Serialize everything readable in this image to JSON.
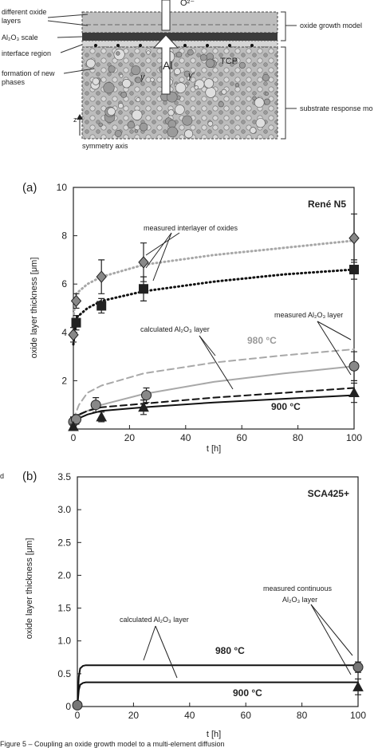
{
  "schematic": {
    "o_label": "O²⁻",
    "al_label": "Al",
    "tcp_label": "TCP",
    "gamma_label": "γ",
    "gamma_prime_label": "γ′",
    "left_labels": {
      "oxide_layers": "different oxide layers",
      "scale": "Al₂O₃ scale",
      "interface": "interface region",
      "new_phases": "formation of new phases",
      "symmetry_axis": "symmetry axis",
      "z": "z"
    },
    "right_labels": {
      "oxide_model": "oxide growth model",
      "substrate_model": "substrate response mo"
    }
  },
  "figure_caption": "Figure 5 – Coupling an oxide growth model to a multi-element diffusion",
  "side_fragment": "d",
  "chart_data": [
    {
      "type": "line",
      "panel_label": "(a)",
      "title": "René N5",
      "xlabel": "t [h]",
      "ylabel": "oxide layer thickness [μm]",
      "xlim": [
        0,
        100
      ],
      "ylim": [
        0,
        10
      ],
      "xticks": [
        "0",
        "20",
        "40",
        "60",
        "80",
        "100"
      ],
      "yticks": [
        "10",
        "8",
        "6",
        "4",
        "2"
      ],
      "annotations": {
        "interlayer": "measured interlayer of oxides",
        "calc": "calculated Al₂O₃ layer",
        "meas_al2o3": "measured Al₂O₃ layer",
        "t980": "980 °C",
        "t900": "900 °C"
      },
      "series": [
        {
          "kind": "curve",
          "color": "#a8a8a8",
          "dash": "1,4",
          "x": [
            0,
            1,
            5,
            10,
            25,
            50,
            75,
            100
          ],
          "y": [
            4.6,
            5.6,
            6.0,
            6.3,
            6.8,
            7.2,
            7.5,
            7.8
          ]
        },
        {
          "kind": "curve",
          "color": "#111111",
          "dash": "1,4",
          "x": [
            0,
            1,
            5,
            10,
            25,
            50,
            75,
            100
          ],
          "y": [
            3.5,
            4.6,
            5.0,
            5.3,
            5.7,
            6.1,
            6.4,
            6.6
          ]
        },
        {
          "kind": "curve",
          "color": "#a8a8a8",
          "dash": "8,5",
          "x": [
            0,
            2,
            5,
            10,
            25,
            50,
            75,
            100
          ],
          "y": [
            0.4,
            1.0,
            1.5,
            1.8,
            2.3,
            2.75,
            3.05,
            3.3
          ]
        },
        {
          "kind": "curve",
          "color": "#a8a8a8",
          "dash": "",
          "x": [
            0,
            2,
            5,
            10,
            25,
            50,
            75,
            100
          ],
          "y": [
            0.3,
            0.55,
            0.75,
            1.0,
            1.45,
            1.95,
            2.3,
            2.6
          ]
        },
        {
          "kind": "curve",
          "color": "#111111",
          "dash": "8,5",
          "x": [
            0,
            2,
            5,
            10,
            25,
            50,
            75,
            100
          ],
          "y": [
            0.3,
            0.6,
            0.75,
            0.9,
            1.05,
            1.3,
            1.5,
            1.7
          ]
        },
        {
          "kind": "curve",
          "color": "#111111",
          "dash": "",
          "x": [
            0,
            2,
            5,
            10,
            25,
            50,
            75,
            100
          ],
          "y": [
            0.2,
            0.45,
            0.6,
            0.75,
            0.9,
            1.1,
            1.25,
            1.4
          ]
        },
        {
          "kind": "points",
          "marker": "diamond",
          "color": "#888888",
          "points": [
            [
              0,
              3.9,
              0.3
            ],
            [
              1,
              5.3,
              0.3
            ],
            [
              10,
              6.3,
              0.7
            ],
            [
              25,
              6.9,
              0.8
            ],
            [
              100,
              7.9,
              1.0
            ]
          ]
        },
        {
          "kind": "points",
          "marker": "square",
          "color": "#222222",
          "points": [
            [
              1,
              4.4,
              0.3
            ],
            [
              10,
              5.1,
              0.3
            ],
            [
              25,
              5.8,
              0.5
            ],
            [
              100,
              6.6,
              0.4
            ]
          ]
        },
        {
          "kind": "points",
          "marker": "circle",
          "color": "#888888",
          "points": [
            [
              0,
              0.3,
              0.2
            ],
            [
              1,
              0.4,
              0.2
            ],
            [
              8,
              1.0,
              0.3
            ],
            [
              26,
              1.4,
              0.3
            ],
            [
              100,
              2.6,
              0.6
            ]
          ]
        },
        {
          "kind": "points",
          "marker": "triangle",
          "color": "#222222",
          "points": [
            [
              0,
              0.1,
              0.1
            ],
            [
              10,
              0.5,
              0.2
            ],
            [
              25,
              0.9,
              0.3
            ],
            [
              100,
              1.5,
              0.4
            ]
          ]
        }
      ]
    },
    {
      "type": "line",
      "panel_label": "(b)",
      "title": "SCA425+",
      "xlabel": "t [h]",
      "ylabel": "oxide layer thickness [μm]",
      "xlim": [
        0,
        100
      ],
      "ylim": [
        0,
        3.5
      ],
      "xticks": [
        "0",
        "20",
        "40",
        "60",
        "80",
        "100"
      ],
      "yticks": [
        "3.5",
        "3.0",
        "2.5",
        "2.0",
        "1.5",
        "1.0",
        "0.5",
        "0"
      ],
      "annotations": {
        "calc": "calculated Al₂O₃ layer",
        "meas_line1": "measured continuous",
        "meas_line2": "Al₂O₃ layer",
        "t980": "980 °C",
        "t900": "900 °C"
      },
      "series": [
        {
          "kind": "curve",
          "color": "#111111",
          "dash": "",
          "x": [
            0,
            0.5,
            1,
            2,
            3,
            100
          ],
          "y": [
            0,
            0.45,
            0.58,
            0.62,
            0.63,
            0.63
          ]
        },
        {
          "kind": "curve",
          "color": "#111111",
          "dash": "",
          "x": [
            0,
            0.5,
            1,
            2,
            3,
            100
          ],
          "y": [
            0,
            0.25,
            0.33,
            0.36,
            0.37,
            0.37
          ]
        },
        {
          "kind": "points",
          "marker": "circle",
          "color": "#777777",
          "points": [
            [
              0,
              0.02,
              0
            ],
            [
              100,
              0.6,
              0.08
            ]
          ]
        },
        {
          "kind": "points",
          "marker": "triangle",
          "color": "#222222",
          "points": [
            [
              100,
              0.3,
              0.12
            ]
          ]
        }
      ]
    }
  ]
}
